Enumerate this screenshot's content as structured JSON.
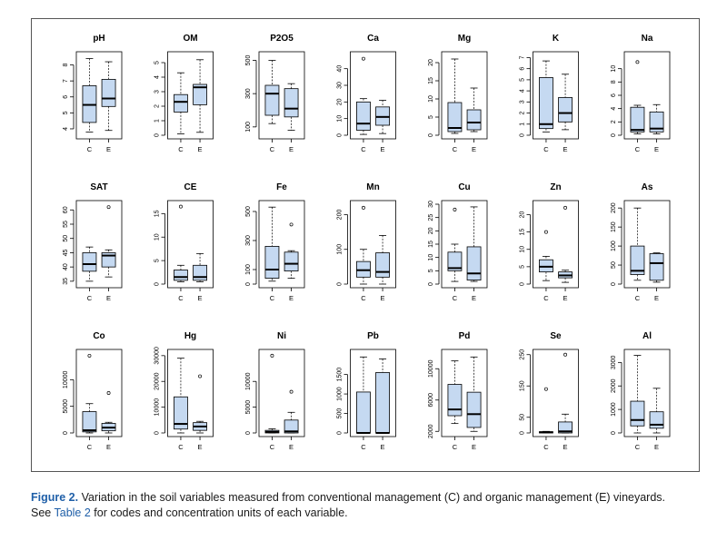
{
  "caption": {
    "figure_label": "Figure 2.",
    "text_1": " Variation in the soil variables measured from conventional management (C) and organic management (E) vineyards.",
    "text_2": "See ",
    "table_ref": "Table 2",
    "text_3": " for codes and concentration units of each variable."
  },
  "colors": {
    "box_fill": "#c5d9f1",
    "median": "#000000",
    "axis": "#000000"
  },
  "chart_data": [
    {
      "type": "box",
      "title": "pH",
      "categories": [
        "C",
        "E"
      ],
      "ylim": [
        3.6,
        8.6
      ],
      "ticks": [
        4,
        5,
        6,
        7,
        8
      ],
      "boxes": [
        {
          "min": 3.8,
          "q1": 4.4,
          "median": 5.5,
          "q3": 6.7,
          "max": 8.4,
          "outliers": []
        },
        {
          "min": 3.9,
          "q1": 5.4,
          "median": 5.9,
          "q3": 7.1,
          "max": 8.2,
          "outliers": []
        }
      ]
    },
    {
      "type": "box",
      "title": "OM",
      "categories": [
        "C",
        "E"
      ],
      "ylim": [
        0,
        5.5
      ],
      "ticks": [
        0,
        1,
        2,
        3,
        4,
        5
      ],
      "boxes": [
        {
          "min": 0.1,
          "q1": 1.6,
          "median": 2.3,
          "q3": 2.8,
          "max": 4.3,
          "outliers": []
        },
        {
          "min": 0.2,
          "q1": 2.1,
          "median": 3.3,
          "q3": 3.5,
          "max": 5.2,
          "outliers": []
        }
      ]
    },
    {
      "type": "box",
      "title": "P2O5",
      "categories": [
        "C",
        "E"
      ],
      "ylim": [
        50,
        530
      ],
      "ticks": [
        100,
        300,
        500
      ],
      "boxes": [
        {
          "min": 120,
          "q1": 170,
          "median": 300,
          "q3": 350,
          "max": 500,
          "outliers": []
        },
        {
          "min": 80,
          "q1": 160,
          "median": 210,
          "q3": 330,
          "max": 360,
          "outliers": []
        }
      ]
    },
    {
      "type": "box",
      "title": "Ca",
      "categories": [
        "C",
        "E"
      ],
      "ylim": [
        0,
        48
      ],
      "ticks": [
        0,
        10,
        20,
        30,
        40
      ],
      "boxes": [
        {
          "min": 0.5,
          "q1": 3,
          "median": 7,
          "q3": 20,
          "max": 22,
          "outliers": [
            46
          ]
        },
        {
          "min": 1,
          "q1": 6,
          "median": 11,
          "q3": 17,
          "max": 21,
          "outliers": []
        }
      ]
    },
    {
      "type": "box",
      "title": "Mg",
      "categories": [
        "C",
        "E"
      ],
      "ylim": [
        0,
        22
      ],
      "ticks": [
        0,
        5,
        10,
        15,
        20
      ],
      "boxes": [
        {
          "min": 0.5,
          "q1": 1,
          "median": 2,
          "q3": 9,
          "max": 21,
          "outliers": []
        },
        {
          "min": 1,
          "q1": 1.5,
          "median": 3.5,
          "q3": 7,
          "max": 13,
          "outliers": []
        }
      ]
    },
    {
      "type": "box",
      "title": "K",
      "categories": [
        "C",
        "E"
      ],
      "ylim": [
        0,
        7.2
      ],
      "ticks": [
        0,
        1,
        2,
        3,
        4,
        5,
        6,
        7
      ],
      "boxes": [
        {
          "min": 0.3,
          "q1": 0.6,
          "median": 1,
          "q3": 5.2,
          "max": 6.7,
          "outliers": []
        },
        {
          "min": 0.5,
          "q1": 1.2,
          "median": 2,
          "q3": 3.4,
          "max": 5.5,
          "outliers": []
        }
      ]
    },
    {
      "type": "box",
      "title": "Na",
      "categories": [
        "C",
        "E"
      ],
      "ylim": [
        0,
        12
      ],
      "ticks": [
        0,
        2,
        4,
        6,
        8,
        10
      ],
      "boxes": [
        {
          "min": 0.2,
          "q1": 0.5,
          "median": 0.8,
          "q3": 4.2,
          "max": 4.5,
          "outliers": [
            11
          ]
        },
        {
          "min": 0.2,
          "q1": 0.5,
          "median": 1,
          "q3": 3.5,
          "max": 4.6,
          "outliers": []
        }
      ]
    },
    {
      "type": "box",
      "title": "SAT",
      "categories": [
        "C",
        "E"
      ],
      "ylim": [
        34,
        62
      ],
      "ticks": [
        35,
        40,
        45,
        50,
        55,
        60
      ],
      "boxes": [
        {
          "min": 35,
          "q1": 38.5,
          "median": 41,
          "q3": 45,
          "max": 47,
          "outliers": []
        },
        {
          "min": 36.5,
          "q1": 40,
          "median": 44,
          "q3": 45,
          "max": 46,
          "outliers": [
            61
          ]
        }
      ]
    },
    {
      "type": "box",
      "title": "CE",
      "categories": [
        "C",
        "E"
      ],
      "ylim": [
        0,
        17
      ],
      "ticks": [
        0,
        5,
        10,
        15
      ],
      "boxes": [
        {
          "min": 0.5,
          "q1": 0.8,
          "median": 1.5,
          "q3": 3,
          "max": 4,
          "outliers": [
            16.5
          ]
        },
        {
          "min": 0.5,
          "q1": 0.8,
          "median": 1.5,
          "q3": 4,
          "max": 6.5,
          "outliers": []
        }
      ]
    },
    {
      "type": "box",
      "title": "Fe",
      "categories": [
        "C",
        "E"
      ],
      "ylim": [
        0,
        550
      ],
      "ticks": [
        0,
        100,
        300,
        500
      ],
      "boxes": [
        {
          "min": 20,
          "q1": 40,
          "median": 100,
          "q3": 260,
          "max": 530,
          "outliers": []
        },
        {
          "min": 40,
          "q1": 90,
          "median": 140,
          "q3": 220,
          "max": 230,
          "outliers": [
            410
          ]
        }
      ]
    },
    {
      "type": "box",
      "title": "Mn",
      "categories": [
        "C",
        "E"
      ],
      "ylim": [
        0,
        230
      ],
      "ticks": [
        0,
        100,
        200
      ],
      "boxes": [
        {
          "min": 0,
          "q1": 20,
          "median": 40,
          "q3": 65,
          "max": 100,
          "outliers": [
            220
          ]
        },
        {
          "min": 0,
          "q1": 20,
          "median": 35,
          "q3": 90,
          "max": 140,
          "outliers": []
        }
      ]
    },
    {
      "type": "box",
      "title": "Cu",
      "categories": [
        "C",
        "E"
      ],
      "ylim": [
        0,
        30
      ],
      "ticks": [
        0,
        5,
        10,
        15,
        20,
        25,
        30
      ],
      "boxes": [
        {
          "min": 1,
          "q1": 5,
          "median": 6,
          "q3": 12,
          "max": 15,
          "outliers": [
            28
          ]
        },
        {
          "min": 1,
          "q1": 1.5,
          "median": 4,
          "q3": 14,
          "max": 29,
          "outliers": []
        }
      ]
    },
    {
      "type": "box",
      "title": "Zn",
      "categories": [
        "C",
        "E"
      ],
      "ylim": [
        0,
        23
      ],
      "ticks": [
        0,
        5,
        10,
        15,
        20
      ],
      "boxes": [
        {
          "min": 1,
          "q1": 3.5,
          "median": 5,
          "q3": 7,
          "max": 8,
          "outliers": [
            15
          ]
        },
        {
          "min": 0.5,
          "q1": 1.8,
          "median": 2.5,
          "q3": 3.5,
          "max": 4,
          "outliers": [
            22
          ]
        }
      ]
    },
    {
      "type": "box",
      "title": "As",
      "categories": [
        "C",
        "E"
      ],
      "ylim": [
        0,
        210
      ],
      "ticks": [
        0,
        50,
        100,
        150,
        200
      ],
      "boxes": [
        {
          "min": 10,
          "q1": 25,
          "median": 35,
          "q3": 100,
          "max": 200,
          "outliers": []
        },
        {
          "min": 5,
          "q1": 10,
          "median": 55,
          "q3": 80,
          "max": 82,
          "outliers": []
        }
      ]
    },
    {
      "type": "box",
      "title": "Co",
      "categories": [
        "C",
        "E"
      ],
      "ylim": [
        0,
        15000
      ],
      "ticks": [
        0,
        5000,
        10000
      ],
      "boxes": [
        {
          "min": 0,
          "q1": 200,
          "median": 500,
          "q3": 4000,
          "max": 5500,
          "outliers": [
            14500
          ]
        },
        {
          "min": 0,
          "q1": 400,
          "median": 1000,
          "q3": 1800,
          "max": 2000,
          "outliers": [
            7500
          ]
        }
      ]
    },
    {
      "type": "box",
      "title": "Hg",
      "categories": [
        "C",
        "E"
      ],
      "ylim": [
        0,
        31000
      ],
      "ticks": [
        0,
        10000,
        20000,
        30000
      ],
      "boxes": [
        {
          "min": 0,
          "q1": 1500,
          "median": 3500,
          "q3": 14000,
          "max": 29000,
          "outliers": []
        },
        {
          "min": 0,
          "q1": 1000,
          "median": 2500,
          "q3": 4000,
          "max": 4500,
          "outliers": [
            22000
          ]
        }
      ]
    },
    {
      "type": "box",
      "title": "Ni",
      "categories": [
        "C",
        "E"
      ],
      "ylim": [
        0,
        15500
      ],
      "ticks": [
        0,
        5000,
        10000
      ],
      "boxes": [
        {
          "min": 0,
          "q1": 0,
          "median": 200,
          "q3": 500,
          "max": 800,
          "outliers": [
            15000
          ]
        },
        {
          "min": 0,
          "q1": 0,
          "median": 300,
          "q3": 2500,
          "max": 4000,
          "outliers": [
            8000
          ]
        }
      ]
    },
    {
      "type": "box",
      "title": "Pb",
      "categories": [
        "C",
        "E"
      ],
      "ylim": [
        0,
        2050
      ],
      "ticks": [
        0,
        500,
        1000,
        1500
      ],
      "boxes": [
        {
          "min": 0,
          "q1": 0,
          "median": 0,
          "q3": 1050,
          "max": 1950,
          "outliers": []
        },
        {
          "min": 0,
          "q1": 0,
          "median": 0,
          "q3": 1550,
          "max": 1900,
          "outliers": []
        }
      ]
    },
    {
      "type": "box",
      "title": "Pd",
      "categories": [
        "C",
        "E"
      ],
      "ylim": [
        1800,
        12000
      ],
      "ticks": [
        2000,
        6000,
        10000
      ],
      "boxes": [
        {
          "min": 3000,
          "q1": 4000,
          "median": 4800,
          "q3": 8000,
          "max": 11000,
          "outliers": []
        },
        {
          "min": 2000,
          "q1": 2500,
          "median": 4200,
          "q3": 7000,
          "max": 11500,
          "outliers": []
        }
      ]
    },
    {
      "type": "box",
      "title": "Se",
      "categories": [
        "C",
        "E"
      ],
      "ylim": [
        0,
        255
      ],
      "ticks": [
        0,
        50,
        150,
        250
      ],
      "boxes": [
        {
          "min": 0,
          "q1": 0,
          "median": 2,
          "q3": 4,
          "max": 5,
          "outliers": [
            140
          ]
        },
        {
          "min": 0,
          "q1": 0,
          "median": 5,
          "q3": 35,
          "max": 60,
          "outliers": [
            250
          ]
        }
      ]
    },
    {
      "type": "box",
      "title": "Al",
      "categories": [
        "C",
        "E"
      ],
      "ylim": [
        0,
        3400
      ],
      "ticks": [
        0,
        1000,
        2000,
        3000
      ],
      "boxes": [
        {
          "min": 0,
          "q1": 300,
          "median": 550,
          "q3": 1350,
          "max": 3300,
          "outliers": []
        },
        {
          "min": 0,
          "q1": 200,
          "median": 350,
          "q3": 900,
          "max": 1900,
          "outliers": []
        }
      ]
    }
  ]
}
